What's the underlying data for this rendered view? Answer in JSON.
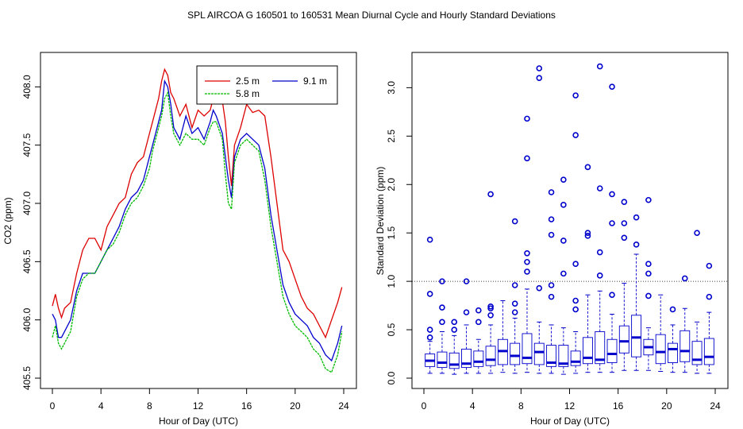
{
  "title": "SPL   AIRCOA G   160501 to 160531   Mean Diurnal Cycle and Hourly Standard Deviations",
  "colors": {
    "red": "#dd0000",
    "green": "#00bb00",
    "blue": "#0000cc",
    "axis": "#000000"
  },
  "chart_data": [
    {
      "type": "line",
      "title": "",
      "xlabel": "Hour of Day (UTC)",
      "ylabel": "CO2 (ppm)",
      "xlim": [
        0,
        24
      ],
      "ylim": [
        405.5,
        408.2
      ],
      "xticks": [
        0,
        4,
        8,
        12,
        16,
        20,
        24
      ],
      "yticks": [
        405.5,
        406.0,
        406.5,
        407.0,
        407.5,
        408.0
      ],
      "ytick_labels": [
        "405.5",
        "406.0",
        "406.5",
        "407.0",
        "407.5",
        "408.0"
      ],
      "legend": {
        "placement": "top-right",
        "entries": [
          "2.5 m",
          "9.1 m",
          "5.8 m"
        ]
      },
      "series": [
        {
          "name": "2.5 m",
          "color": "#dd0000",
          "x": [
            0,
            0.25,
            0.5,
            0.75,
            1,
            1.5,
            2,
            2.5,
            3,
            3.5,
            4,
            4.5,
            5,
            5.5,
            6,
            6.5,
            7,
            7.5,
            8,
            8.25,
            8.5,
            8.75,
            9,
            9.25,
            9.5,
            9.75,
            10,
            10.5,
            11,
            11.5,
            12,
            12.5,
            13,
            13.25,
            13.5,
            14,
            14.25,
            14.5,
            14.75,
            15,
            15.5,
            16,
            16.5,
            17,
            17.5,
            18,
            18.5,
            19,
            19.5,
            20,
            20.5,
            21,
            21.5,
            22,
            22.5,
            23,
            23.5,
            23.85
          ],
          "y": [
            406.12,
            406.22,
            406.1,
            406.02,
            406.1,
            406.15,
            406.4,
            406.6,
            406.7,
            406.7,
            406.6,
            406.8,
            406.9,
            407.0,
            407.05,
            407.25,
            407.35,
            407.4,
            407.6,
            407.7,
            407.8,
            407.9,
            408.05,
            408.15,
            408.1,
            407.95,
            407.9,
            407.75,
            407.85,
            407.65,
            407.8,
            407.75,
            407.8,
            407.9,
            407.95,
            407.88,
            407.7,
            407.4,
            407.15,
            407.5,
            407.65,
            407.85,
            407.78,
            407.8,
            407.75,
            407.4,
            407.0,
            406.6,
            406.5,
            406.35,
            406.2,
            406.1,
            406.05,
            405.95,
            405.85,
            406.0,
            406.15,
            406.28
          ]
        },
        {
          "name": "9.1 m",
          "color": "#0000cc",
          "x": [
            0,
            0.25,
            0.5,
            0.75,
            1,
            1.5,
            2,
            2.5,
            3,
            3.5,
            4,
            4.5,
            5,
            5.5,
            6,
            6.5,
            7,
            7.5,
            8,
            8.25,
            8.5,
            8.75,
            9,
            9.25,
            9.5,
            9.75,
            10,
            10.5,
            11,
            11.5,
            12,
            12.5,
            13,
            13.25,
            13.5,
            14,
            14.25,
            14.5,
            14.75,
            15,
            15.5,
            16,
            16.5,
            17,
            17.5,
            18,
            18.5,
            19,
            19.5,
            20,
            20.5,
            21,
            21.5,
            22,
            22.5,
            23,
            23.5,
            23.85
          ],
          "y": [
            406.05,
            406.0,
            405.85,
            405.85,
            405.9,
            406.0,
            406.25,
            406.4,
            406.4,
            406.4,
            406.5,
            406.6,
            406.7,
            406.8,
            406.95,
            407.05,
            407.1,
            407.2,
            407.4,
            407.5,
            407.6,
            407.7,
            407.8,
            408.05,
            408.0,
            407.85,
            407.65,
            407.55,
            407.75,
            407.6,
            407.65,
            407.55,
            407.7,
            407.8,
            407.75,
            407.6,
            407.4,
            407.2,
            407.05,
            407.4,
            407.55,
            407.6,
            407.55,
            407.5,
            407.3,
            406.9,
            406.6,
            406.3,
            406.15,
            406.05,
            406.0,
            405.95,
            405.85,
            405.8,
            405.7,
            405.65,
            405.8,
            405.95
          ]
        },
        {
          "name": "5.8 m",
          "color": "#00bb00",
          "x": [
            0,
            0.25,
            0.5,
            0.75,
            1,
            1.5,
            2,
            2.5,
            3,
            3.5,
            4,
            4.5,
            5,
            5.5,
            6,
            6.5,
            7,
            7.5,
            8,
            8.25,
            8.5,
            8.75,
            9,
            9.25,
            9.5,
            9.75,
            10,
            10.5,
            11,
            11.5,
            12,
            12.5,
            13,
            13.25,
            13.5,
            14,
            14.25,
            14.5,
            14.75,
            15,
            15.5,
            16,
            16.5,
            17,
            17.5,
            18,
            18.5,
            19,
            19.5,
            20,
            20.5,
            21,
            21.5,
            22,
            22.5,
            23,
            23.5,
            23.85
          ],
          "y": [
            405.85,
            405.95,
            405.8,
            405.75,
            405.8,
            405.9,
            406.2,
            406.35,
            406.4,
            406.4,
            406.5,
            406.6,
            406.65,
            406.75,
            406.9,
            407.0,
            407.05,
            407.15,
            407.3,
            407.45,
            407.55,
            407.65,
            407.75,
            407.9,
            407.95,
            407.75,
            407.6,
            407.5,
            407.6,
            407.55,
            407.55,
            407.5,
            407.65,
            407.7,
            407.7,
            407.55,
            407.25,
            407.0,
            406.95,
            407.35,
            407.5,
            407.55,
            407.5,
            407.45,
            407.2,
            406.8,
            406.5,
            406.2,
            406.05,
            405.95,
            405.9,
            405.85,
            405.75,
            405.7,
            405.58,
            405.55,
            405.7,
            405.9
          ]
        }
      ]
    },
    {
      "type": "box",
      "title": "",
      "xlabel": "Hour of Day (UTC)",
      "ylabel": "Standard Deviation (ppm)",
      "xlim": [
        0,
        24
      ],
      "ylim": [
        0,
        3.2
      ],
      "xticks": [
        0,
        4,
        8,
        12,
        16,
        20,
        24
      ],
      "yticks": [
        0,
        0.5,
        1.0,
        1.5,
        2.0,
        2.5,
        3.0
      ],
      "ytick_labels": [
        "0.0",
        "0.5",
        "1.0",
        "1.5",
        "2.0",
        "2.5",
        "3.0"
      ],
      "reference_line": 1.0,
      "boxes": [
        {
          "hour": 0.5,
          "whislo": 0.05,
          "q1": 0.12,
          "med": 0.18,
          "q3": 0.25,
          "whishi": 0.38,
          "outliers": [
            0.42,
            0.5,
            0.87,
            1.43
          ]
        },
        {
          "hour": 1.5,
          "whislo": 0.05,
          "q1": 0.11,
          "med": 0.16,
          "q3": 0.27,
          "whishi": 0.48,
          "outliers": [
            0.58,
            0.73,
            1.0
          ]
        },
        {
          "hour": 2.5,
          "whislo": 0.04,
          "q1": 0.1,
          "med": 0.14,
          "q3": 0.26,
          "whishi": 0.44,
          "outliers": [
            0.5,
            0.58
          ]
        },
        {
          "hour": 3.5,
          "whislo": 0.05,
          "q1": 0.11,
          "med": 0.15,
          "q3": 0.3,
          "whishi": 0.55,
          "outliers": [
            0.68,
            1.0
          ]
        },
        {
          "hour": 4.5,
          "whislo": 0.05,
          "q1": 0.12,
          "med": 0.17,
          "q3": 0.28,
          "whishi": 0.4,
          "outliers": [
            0.58,
            0.7
          ]
        },
        {
          "hour": 5.5,
          "whislo": 0.05,
          "q1": 0.13,
          "med": 0.19,
          "q3": 0.33,
          "whishi": 0.55,
          "outliers": [
            0.65,
            0.72,
            0.74,
            1.9
          ]
        },
        {
          "hour": 6.5,
          "whislo": 0.06,
          "q1": 0.14,
          "med": 0.28,
          "q3": 0.4,
          "whishi": 0.8,
          "outliers": []
        },
        {
          "hour": 7.5,
          "whislo": 0.05,
          "q1": 0.14,
          "med": 0.23,
          "q3": 0.36,
          "whishi": 0.62,
          "outliers": [
            0.68,
            0.77,
            0.96,
            1.62
          ]
        },
        {
          "hour": 8.5,
          "whislo": 0.06,
          "q1": 0.15,
          "med": 0.21,
          "q3": 0.46,
          "whishi": 0.92,
          "outliers": [
            1.1,
            1.2,
            1.29,
            2.27,
            2.68
          ]
        },
        {
          "hour": 9.5,
          "whislo": 0.05,
          "q1": 0.14,
          "med": 0.27,
          "q3": 0.36,
          "whishi": 0.58,
          "outliers": [
            0.93,
            3.1,
            3.2
          ]
        },
        {
          "hour": 10.5,
          "whislo": 0.05,
          "q1": 0.12,
          "med": 0.16,
          "q3": 0.34,
          "whishi": 0.55,
          "outliers": [
            0.84,
            0.96,
            1.48,
            1.64,
            1.92
          ]
        },
        {
          "hour": 11.5,
          "whislo": 0.04,
          "q1": 0.12,
          "med": 0.15,
          "q3": 0.34,
          "whishi": 0.52,
          "outliers": [
            1.08,
            1.42,
            1.79,
            2.05
          ]
        },
        {
          "hour": 12.5,
          "whislo": 0.05,
          "q1": 0.13,
          "med": 0.17,
          "q3": 0.28,
          "whishi": 0.48,
          "outliers": [
            0.71,
            0.8,
            1.18,
            2.51,
            2.92
          ]
        },
        {
          "hour": 13.5,
          "whislo": 0.06,
          "q1": 0.15,
          "med": 0.21,
          "q3": 0.42,
          "whishi": 0.86,
          "outliers": [
            1.47,
            1.5,
            2.18
          ]
        },
        {
          "hour": 14.5,
          "whislo": 0.06,
          "q1": 0.15,
          "med": 0.19,
          "q3": 0.48,
          "whishi": 0.9,
          "outliers": [
            1.06,
            1.3,
            1.96,
            3.22
          ]
        },
        {
          "hour": 15.5,
          "whislo": 0.06,
          "q1": 0.16,
          "med": 0.25,
          "q3": 0.4,
          "whishi": 0.66,
          "outliers": [
            0.86,
            1.6,
            1.9,
            3.01
          ]
        },
        {
          "hour": 16.5,
          "whislo": 0.08,
          "q1": 0.26,
          "med": 0.38,
          "q3": 0.54,
          "whishi": 0.98,
          "outliers": [
            1.45,
            1.6,
            1.82
          ]
        },
        {
          "hour": 17.5,
          "whislo": 0.08,
          "q1": 0.22,
          "med": 0.42,
          "q3": 0.65,
          "whishi": 1.28,
          "outliers": [
            1.38,
            1.66
          ]
        },
        {
          "hour": 18.5,
          "whislo": 0.08,
          "q1": 0.24,
          "med": 0.32,
          "q3": 0.4,
          "whishi": 0.52,
          "outliers": [
            0.85,
            1.08,
            1.18,
            1.84
          ]
        },
        {
          "hour": 19.5,
          "whislo": 0.07,
          "q1": 0.15,
          "med": 0.27,
          "q3": 0.45,
          "whishi": 0.86,
          "outliers": []
        },
        {
          "hour": 20.5,
          "whislo": 0.06,
          "q1": 0.16,
          "med": 0.3,
          "q3": 0.36,
          "whishi": 0.55,
          "outliers": [
            0.71
          ]
        },
        {
          "hour": 21.5,
          "whislo": 0.06,
          "q1": 0.17,
          "med": 0.28,
          "q3": 0.49,
          "whishi": 0.72,
          "outliers": [
            1.03
          ]
        },
        {
          "hour": 22.5,
          "whislo": 0.05,
          "q1": 0.14,
          "med": 0.19,
          "q3": 0.38,
          "whishi": 0.58,
          "outliers": [
            1.5
          ]
        },
        {
          "hour": 23.5,
          "whislo": 0.05,
          "q1": 0.14,
          "med": 0.22,
          "q3": 0.41,
          "whishi": 0.68,
          "outliers": [
            0.84,
            1.16
          ]
        }
      ]
    }
  ]
}
